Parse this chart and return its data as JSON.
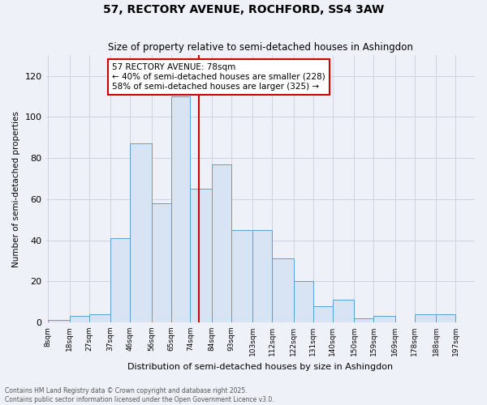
{
  "title": "57, RECTORY AVENUE, ROCHFORD, SS4 3AW",
  "subtitle": "Size of property relative to semi-detached houses in Ashingdon",
  "xlabel": "Distribution of semi-detached houses by size in Ashingdon",
  "ylabel": "Number of semi-detached properties",
  "footnote1": "Contains HM Land Registry data © Crown copyright and database right 2025.",
  "footnote2": "Contains public sector information licensed under the Open Government Licence v3.0.",
  "annotation_title": "57 RECTORY AVENUE: 78sqm",
  "annotation_line1": "← 40% of semi-detached houses are smaller (228)",
  "annotation_line2": "58% of semi-detached houses are larger (325) →",
  "property_size": 78,
  "bins": [
    8,
    18,
    27,
    37,
    46,
    56,
    65,
    74,
    84,
    93,
    103,
    112,
    122,
    131,
    140,
    150,
    159,
    169,
    178,
    188,
    197
  ],
  "counts": [
    1,
    3,
    4,
    41,
    87,
    58,
    110,
    65,
    77,
    45,
    45,
    31,
    20,
    8,
    11,
    2,
    3,
    0,
    4,
    4
  ],
  "bar_color": "#d6e4f3",
  "bar_edge_color": "#5a9fd4",
  "vline_color": "#cc0000",
  "annotation_box_color": "#cc0000",
  "background_color": "#eef2f8",
  "ylim": [
    0,
    130
  ],
  "yticks": [
    0,
    20,
    40,
    60,
    80,
    100,
    120
  ]
}
